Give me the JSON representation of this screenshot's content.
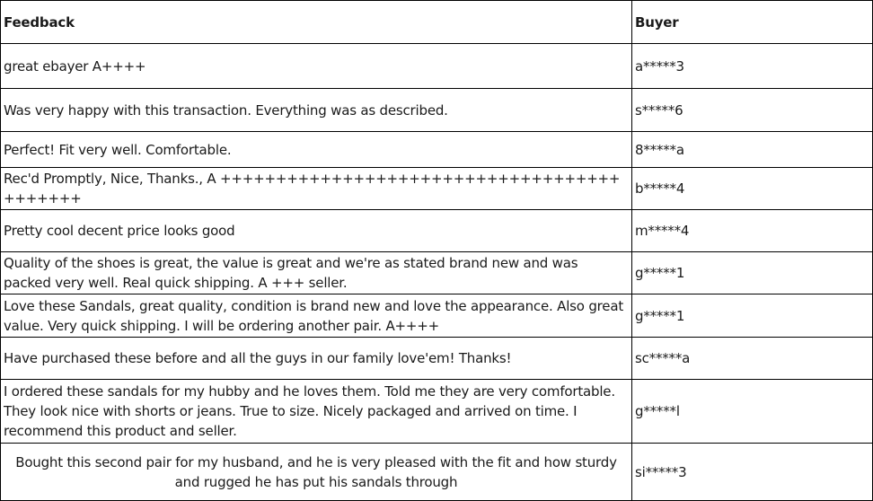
{
  "headers": {
    "feedback": "Feedback",
    "buyer": "Buyer"
  },
  "rows": [
    {
      "feedback": "great ebayer A++++",
      "buyer": "a*****3"
    },
    {
      "feedback": "Was very happy with this transaction. Everything was as described.",
      "buyer": "s*****6"
    },
    {
      "feedback": "Perfect! Fit very well. Comfortable.",
      "buyer": "8*****a"
    },
    {
      "feedback": "Rec'd Promptly, Nice, Thanks., A +++++++++++++++++++++++++++++++++++++++++++",
      "buyer": "b*****4"
    },
    {
      "feedback": "Pretty cool decent price looks good",
      "buyer": "m*****4"
    },
    {
      "feedback": "Quality of the shoes is great, the value is great and we're as stated brand new and was packed very well. Real quick shipping. A +++ seller.",
      "buyer": "g*****1"
    },
    {
      "feedback": "Love these Sandals, great quality, condition is brand new and love the appearance. Also great value. Very quick shipping. I will be ordering another pair. A++++",
      "buyer": "g*****1"
    },
    {
      "feedback": "Have purchased these before and all the guys in our family love'em! Thanks!",
      "buyer": "sc*****a"
    },
    {
      "feedback": "I ordered these sandals for my hubby and he loves them. Told me they are very comfortable. They look nice with shorts or jeans. True to size. Nicely packaged and arrived on time. I recommend this product and seller.",
      "buyer": "g*****l"
    },
    {
      "feedback": "Bought this second pair for my husband, and he is very pleased with the fit and how sturdy and rugged he has put his sandals through",
      "buyer": "si*****3"
    }
  ]
}
